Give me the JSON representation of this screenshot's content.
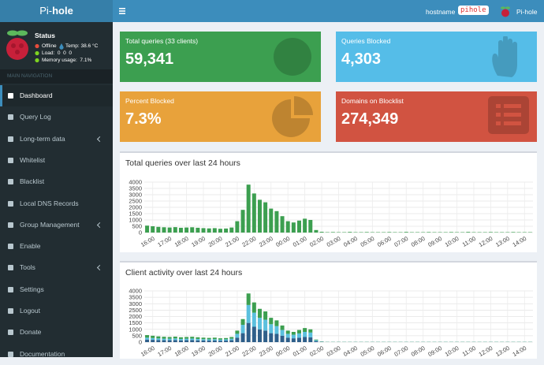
{
  "header": {
    "logo_prefix": "Pi-",
    "logo_suffix": "hole",
    "hostname_label": "hostname",
    "hostname": "pihole",
    "user": "Pi-hole"
  },
  "sidebar": {
    "status_title": "Status",
    "status": "Offline",
    "temp": "Temp: 38.6 °C",
    "load": "Load:  0  0  0",
    "memory": "Memory usage:  7.1%",
    "nav_header": "MAIN NAVIGATION",
    "menu": [
      {
        "label": "Dashboard",
        "active": true
      },
      {
        "label": "Query Log"
      },
      {
        "label": "Long-term data",
        "submenu": true
      },
      {
        "label": "Whitelist"
      },
      {
        "label": "Blacklist"
      },
      {
        "label": "Local DNS Records"
      },
      {
        "label": "Group Management",
        "submenu": true
      },
      {
        "label": "Enable"
      },
      {
        "label": "Tools",
        "submenu": true
      },
      {
        "label": "Settings"
      },
      {
        "label": "Logout"
      },
      {
        "label": "Donate"
      },
      {
        "label": "Documentation"
      }
    ]
  },
  "stats": [
    {
      "label": "Total queries (33 clients)",
      "value": "59,341",
      "color": "#3c9f50"
    },
    {
      "label": "Queries Blocked",
      "value": "4,303",
      "color": "#55bde8"
    },
    {
      "label": "Percent Blocked",
      "value": "7.3%",
      "color": "#e8a23b"
    },
    {
      "label": "Domains on Blocklist",
      "value": "274,349",
      "color": "#d15341"
    }
  ],
  "chart_data": [
    {
      "type": "bar",
      "title": "Total queries over last 24 hours",
      "color": "#3c9f50",
      "ylim": [
        0,
        4000
      ],
      "yticks": [
        0,
        500,
        1000,
        1500,
        2000,
        2500,
        3000,
        3500,
        4000
      ],
      "grid": true,
      "categories": [
        null,
        "16:00",
        null,
        null,
        "17:00",
        null,
        null,
        "18:00",
        null,
        null,
        "19:00",
        null,
        null,
        "20:00",
        null,
        null,
        "21:00",
        null,
        null,
        "22:00",
        null,
        null,
        "23:00",
        null,
        null,
        "00:00",
        null,
        null,
        "01:00",
        null,
        null,
        "02:00",
        null,
        null,
        "03:00",
        null,
        null,
        "04:00",
        null,
        null,
        "05:00",
        null,
        null,
        "06:00",
        null,
        null,
        "07:00",
        null,
        null,
        "08:00",
        null,
        null,
        "09:00",
        null,
        null,
        "10:00",
        null,
        null,
        "11:00",
        null,
        null,
        "12:00",
        null,
        null,
        "13:00",
        null,
        null,
        "14:00",
        null
      ],
      "values": [
        550,
        500,
        450,
        420,
        400,
        430,
        380,
        400,
        420,
        380,
        350,
        330,
        350,
        300,
        320,
        400,
        900,
        1800,
        3800,
        3100,
        2600,
        2400,
        1900,
        1700,
        1300,
        900,
        800,
        950,
        1100,
        1000,
        200,
        60,
        30,
        40,
        30,
        30,
        50,
        30,
        30,
        40,
        30,
        30,
        30,
        40,
        30,
        30,
        50,
        30,
        30,
        30,
        40,
        30,
        30,
        30,
        40,
        30,
        30,
        50,
        30,
        30,
        30,
        40,
        30,
        30,
        30,
        40,
        30,
        30,
        30
      ]
    },
    {
      "type": "bar",
      "stacked": true,
      "title": "Client activity over last 24 hours",
      "ylim": [
        0,
        4000
      ],
      "yticks": [
        0,
        500,
        1000,
        1500,
        2000,
        2500,
        3000,
        3500,
        4000
      ],
      "grid": true,
      "categories": [
        null,
        "16:00",
        null,
        null,
        "17:00",
        null,
        null,
        "18:00",
        null,
        null,
        "19:00",
        null,
        null,
        "20:00",
        null,
        null,
        "21:00",
        null,
        null,
        "22:00",
        null,
        null,
        "23:00",
        null,
        null,
        "00:00",
        null,
        null,
        "01:00",
        null,
        null,
        "02:00",
        null,
        null,
        "03:00",
        null,
        null,
        "04:00",
        null,
        null,
        "05:00",
        null,
        null,
        "06:00",
        null,
        null,
        "07:00",
        null,
        null,
        "08:00",
        null,
        null,
        "09:00",
        null,
        null,
        "10:00",
        null,
        null,
        "11:00",
        null,
        null,
        "12:00",
        null,
        null,
        "13:00",
        null,
        null,
        "14:00",
        null
      ],
      "series": [
        {
          "color": "#2f5f8a",
          "values": [
            200,
            180,
            160,
            150,
            150,
            160,
            140,
            150,
            160,
            140,
            130,
            120,
            130,
            110,
            120,
            150,
            350,
            700,
            1500,
            1200,
            1000,
            900,
            700,
            650,
            500,
            350,
            300,
            350,
            400,
            380,
            80,
            20,
            10,
            10,
            10,
            10,
            10,
            10,
            10,
            10,
            10,
            10,
            10,
            10,
            10,
            10,
            10,
            10,
            10,
            10,
            10,
            10,
            10,
            10,
            10,
            10,
            10,
            10,
            10,
            10,
            10,
            10,
            10,
            10,
            10,
            10,
            10,
            10,
            10
          ]
        },
        {
          "color": "#5bc0de",
          "values": [
            150,
            140,
            130,
            120,
            120,
            130,
            110,
            120,
            120,
            110,
            100,
            100,
            100,
            90,
            100,
            120,
            300,
            650,
            1400,
            1100,
            900,
            850,
            700,
            600,
            450,
            300,
            280,
            330,
            400,
            370,
            70,
            20,
            10,
            10,
            10,
            10,
            10,
            10,
            10,
            10,
            10,
            10,
            10,
            10,
            10,
            10,
            10,
            10,
            10,
            10,
            10,
            10,
            10,
            10,
            10,
            10,
            10,
            10,
            10,
            10,
            10,
            10,
            10,
            10,
            10,
            10,
            10,
            10,
            10
          ]
        },
        {
          "color": "#3c9f50",
          "values": [
            200,
            180,
            160,
            150,
            130,
            140,
            130,
            130,
            140,
            130,
            120,
            110,
            120,
            100,
            100,
            130,
            250,
            450,
            900,
            800,
            700,
            650,
            500,
            450,
            350,
            250,
            220,
            270,
            300,
            250,
            50,
            20,
            10,
            10,
            10,
            10,
            10,
            10,
            10,
            10,
            10,
            10,
            10,
            10,
            10,
            10,
            10,
            10,
            10,
            10,
            10,
            10,
            10,
            10,
            10,
            10,
            10,
            10,
            10,
            10,
            10,
            10,
            10,
            10,
            10,
            10,
            10,
            10,
            10
          ]
        }
      ]
    }
  ]
}
